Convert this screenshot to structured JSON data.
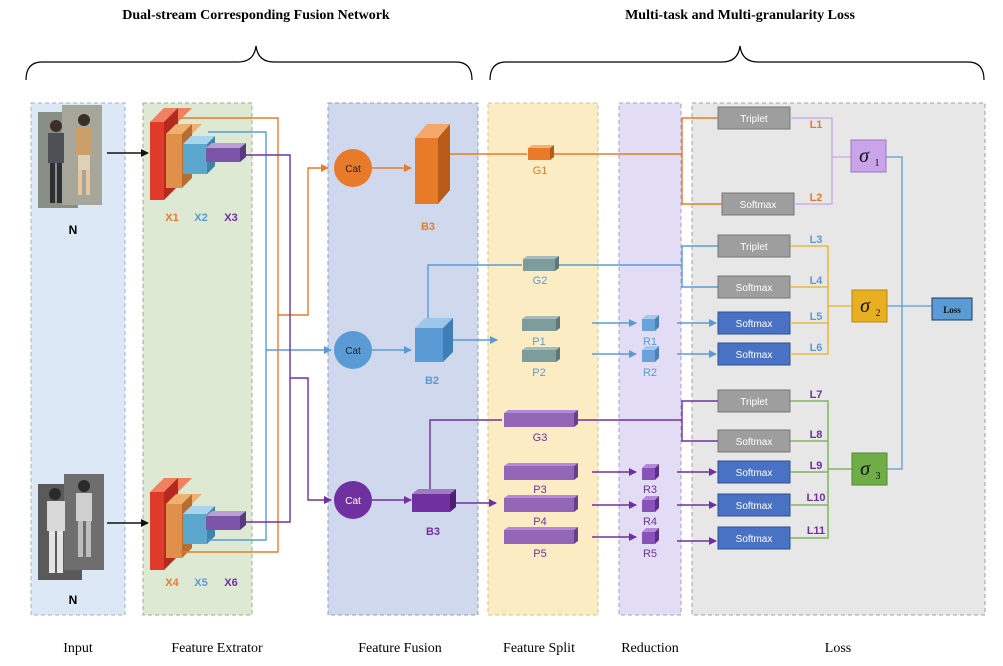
{
  "titles": {
    "left": "Dual-stream Corresponding Fusion Network",
    "right": "Multi-task and Multi-granularity Loss"
  },
  "panels": {
    "input": "Input",
    "extractor": "Feature Extrator",
    "fusion": "Feature Fusion",
    "split": "Feature Split",
    "reduction": "Reduction",
    "loss": "Loss"
  },
  "inputs": {
    "top_label": "N",
    "bottom_label": "N"
  },
  "extractor_labels": {
    "x1": "X1",
    "x2": "X2",
    "x3": "X3",
    "x4": "X4",
    "x5": "X5",
    "x6": "X6"
  },
  "fusion": {
    "cat_label": "Cat",
    "b3_top": "B3",
    "b2": "B2",
    "b3_bottom": "B3"
  },
  "split": {
    "g1": "G1",
    "g2": "G2",
    "p1": "P1",
    "p2": "P2",
    "g3": "G3",
    "p3": "P3",
    "p4": "P4",
    "p5": "P5"
  },
  "reduction": {
    "r1": "R1",
    "r2": "R2",
    "r3": "R3",
    "r4": "R4",
    "r5": "R5"
  },
  "loss_boxes": {
    "triplet": "Triplet",
    "softmax": "Softmax"
  },
  "loss_labels": {
    "l1": "L1",
    "l2": "L2",
    "l3": "L3",
    "l4": "L4",
    "l5": "L5",
    "l6": "L6",
    "l7": "L7",
    "l8": "L8",
    "l9": "L9",
    "l10": "L10",
    "l11": "L11"
  },
  "sigma": {
    "symbol": "σ",
    "s1": "1",
    "s2": "2",
    "s3": "3"
  },
  "total_loss": "Loss",
  "colors": {
    "orange": "#e87b2a",
    "blue": "#5b9bd5",
    "purple": "#7030a0",
    "green": "#70ad47",
    "gold": "#e8b020",
    "lavender": "#c9a4e8",
    "red": "#e03a2a"
  }
}
